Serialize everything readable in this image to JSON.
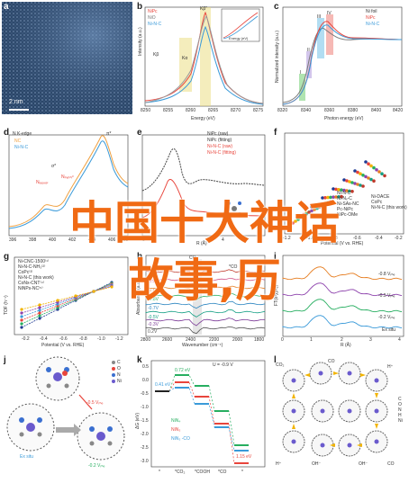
{
  "panels": {
    "a": {
      "letter": "a",
      "scale_bar": "2 nm"
    },
    "b": {
      "letter": "b",
      "legend": [
        "NiPc",
        "NiO",
        "Ni-N-C"
      ],
      "peaks": [
        "Kβ",
        "Kα",
        "Kβ′′"
      ],
      "xlabel": "Energy (eV)",
      "ylabel": "Intensity (a.u.)",
      "xticks": [
        "8250",
        "8255",
        "8260",
        "8265",
        "8270",
        "8275"
      ],
      "inset_xlabel": "Energy (eV)"
    },
    "c": {
      "letter": "c",
      "legend": [
        "Ni foil",
        "NiPc",
        "Ni-N-C"
      ],
      "peaks": [
        "I",
        "II",
        "III",
        "IV"
      ],
      "xlabel": "Photon energy (eV)",
      "ylabel": "Normalized intensity (a.u.)",
      "xticks": [
        "8320",
        "8340",
        "8360",
        "8380",
        "8400",
        "8420"
      ]
    },
    "d": {
      "letter": "d",
      "title": "N K-edge",
      "legend": [
        "NC",
        "Ni-N-C"
      ],
      "peaks": [
        "π*",
        "σ*",
        "Nₑₐₓₓₑₗ",
        "Nₚᵧᵣᵢₙᵢᶜ",
        "Nₚᵧᵣᵣₒₗᵢᶜ"
      ],
      "xticks": [
        "396",
        "398",
        "400",
        "402",
        "404",
        "406",
        "408"
      ],
      "xlabel": "Photon energy (eV)"
    },
    "e": {
      "letter": "e",
      "legend": [
        "NiPc (raw)",
        "NiPc (fitting)",
        "Ni-N-C (raw)",
        "Ni-N-C (fitting)"
      ],
      "xlabel": "R (Å)",
      "xticks": [
        "0",
        "2",
        "4",
        "6"
      ]
    },
    "f": {
      "letter": "f",
      "xlabel": "Potential (V vs. RHE)",
      "xticks": [
        "-1.2",
        "-1.0",
        "-0.8",
        "-0.6",
        "-0.4",
        "-0.2"
      ],
      "legend": [
        "Ni-N-C",
        "Ni-Nₓ-C",
        "Ni-SAs-NC",
        "Ni-DACE",
        "Pc-NiPc",
        "NiPc-OMe",
        "CoPc",
        "Ni-N-C (this work)"
      ]
    },
    "g": {
      "letter": "g",
      "legend": [
        "Ni-CNC-1500⁽¹⁾",
        "Ni-N-C-NH₃⁽²⁾",
        "CoPc⁽³⁾",
        "Ni-N-C (this work)",
        "CoNx-CNT⁽⁴⁾",
        "NiNPs-NC⁽⁵⁾"
      ],
      "xlabel": "Potential (V vs. RHE)",
      "ylabel": "TOF (h⁻¹)",
      "xticks": [
        "-0.2",
        "-0.4",
        "-0.6",
        "-0.8",
        "-1.0",
        "-1.2"
      ]
    },
    "h": {
      "letter": "h",
      "series": [
        "-1.4V",
        "-1.2V",
        "-1.0V",
        "-0.8V",
        "-0.7V",
        "-0.5V",
        "-0.3V",
        "0.2V"
      ],
      "xlabel": "Wavenumber (cm⁻¹)",
      "xticks": [
        "2800",
        "2600",
        "2400",
        "2200",
        "2000",
        "1800"
      ],
      "ylabel": "Absorbance (a.u.)",
      "annotations": [
        "*CO",
        "CO₂"
      ]
    },
    "i": {
      "letter": "i",
      "series": [
        "-0.8 Vᵣₕₑ",
        "-0.5 Vᵣₕₑ",
        "-0.2 Vᵣₕₑ",
        "Ex situ"
      ],
      "xlabel": "R (Å)",
      "ylabel": "FT(k³χ(R))",
      "xticks": [
        "0",
        "1",
        "2",
        "3",
        "4"
      ]
    },
    "j": {
      "letter": "j",
      "legend": [
        "C",
        "O",
        "N",
        "Ni"
      ],
      "labels": [
        "-0.5 Vᵣₕₑ",
        "Ex situ",
        "-0.2 Vᵣₕₑ"
      ]
    },
    "k": {
      "letter": "k",
      "title": "U = -0.9 V",
      "values": [
        "0.41 eV",
        "0.72 eV",
        "1.15 eV"
      ],
      "legend": [
        "NiN₄",
        "NiN₃",
        "NiN₃ -CO"
      ],
      "xticks": [
        "*",
        "*CO₂",
        "*COOH",
        "*CO",
        "*"
      ],
      "ylabel": "ΔG (eV)",
      "yticks": [
        "0.5",
        "0.0",
        "-0.5",
        "-1.0",
        "-1.5",
        "-2.0",
        "-2.5",
        "-3.0"
      ]
    },
    "l": {
      "letter": "l",
      "labels": [
        "CO₂",
        "CO",
        "H⁺",
        "H⁺",
        "OH⁻",
        "OH⁻",
        "CO"
      ],
      "legend": [
        "C",
        "O",
        "N",
        "H",
        "Ni"
      ]
    }
  },
  "overlay": {
    "line1": "中国十大神话",
    "line2": "故事,历"
  },
  "colors": {
    "accent_orange": "#f06a14",
    "nipc": "#e8453c",
    "nio": "#9a9a9a",
    "ninc": "#3a9ad9",
    "micrograph": "#3a5a80"
  }
}
